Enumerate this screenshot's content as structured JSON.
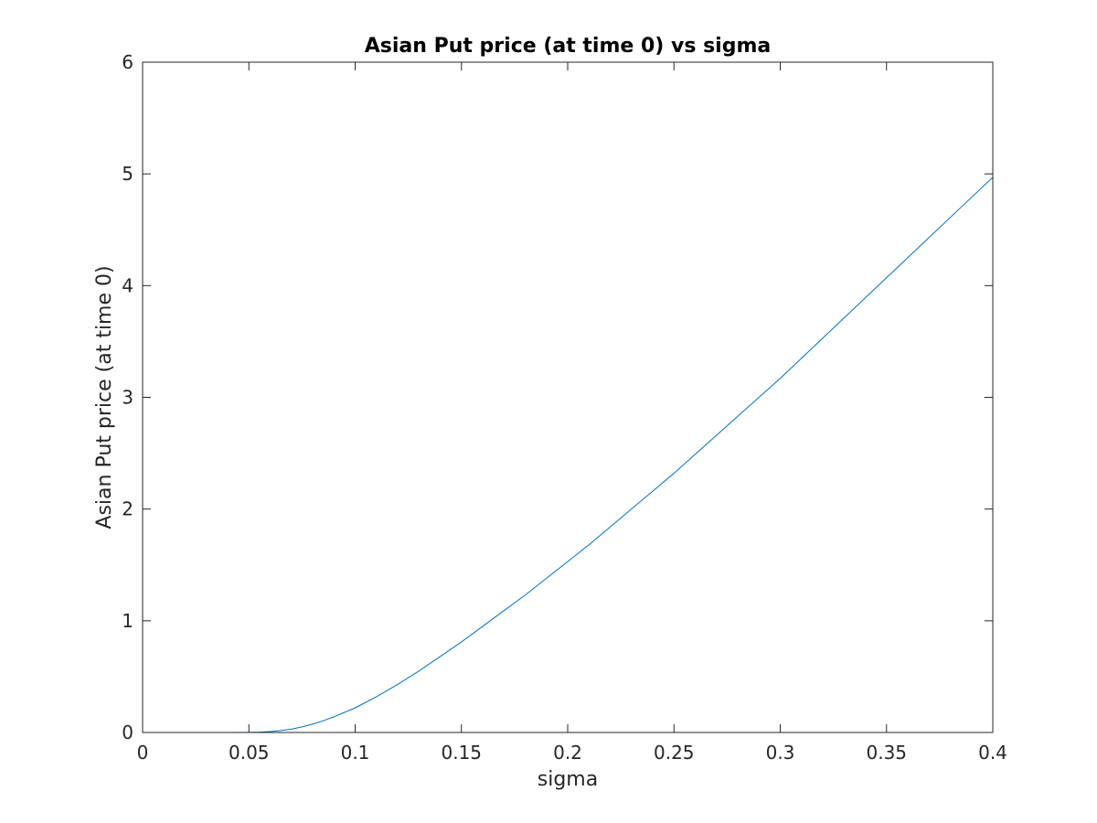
{
  "chart_data": {
    "type": "line",
    "title": "Asian Put price (at time 0) vs sigma",
    "xlabel": "sigma",
    "ylabel": "Asian Put price (at time 0)",
    "xlim": [
      0,
      0.4
    ],
    "ylim": [
      0,
      6
    ],
    "grid": false,
    "xticks": [
      0,
      0.05,
      0.1,
      0.15,
      0.2,
      0.25,
      0.3,
      0.35,
      0.4
    ],
    "xtick_labels": [
      "0",
      "0.05",
      "0.1",
      "0.15",
      "0.2",
      "0.25",
      "0.3",
      "0.35",
      "0.4"
    ],
    "yticks": [
      0,
      1,
      2,
      3,
      4,
      5,
      6
    ],
    "ytick_labels": [
      "0",
      "1",
      "2",
      "3",
      "4",
      "5",
      "6"
    ],
    "series": [
      {
        "color": "#0072BD",
        "x": [
          0,
          0.01,
          0.02,
          0.03,
          0.04,
          0.05,
          0.055,
          0.06,
          0.065,
          0.07,
          0.075,
          0.08,
          0.085,
          0.09,
          0.095,
          0.1,
          0.11,
          0.12,
          0.13,
          0.14,
          0.15,
          0.16,
          0.17,
          0.18,
          0.19,
          0.2,
          0.21,
          0.22,
          0.23,
          0.24,
          0.25,
          0.26,
          0.27,
          0.28,
          0.29,
          0.3,
          0.31,
          0.32,
          0.33,
          0.34,
          0.35,
          0.36,
          0.37,
          0.38,
          0.39,
          0.4
        ],
        "y": [
          0,
          0,
          0,
          0,
          0,
          0.001,
          0.003,
          0.008,
          0.017,
          0.03,
          0.05,
          0.075,
          0.105,
          0.14,
          0.18,
          0.22,
          0.32,
          0.43,
          0.55,
          0.68,
          0.81,
          0.95,
          1.09,
          1.23,
          1.38,
          1.53,
          1.68,
          1.84,
          2.0,
          2.16,
          2.32,
          2.49,
          2.66,
          2.83,
          3.0,
          3.17,
          3.35,
          3.53,
          3.71,
          3.89,
          4.07,
          4.25,
          4.43,
          4.61,
          4.79,
          4.97
        ]
      }
    ]
  }
}
